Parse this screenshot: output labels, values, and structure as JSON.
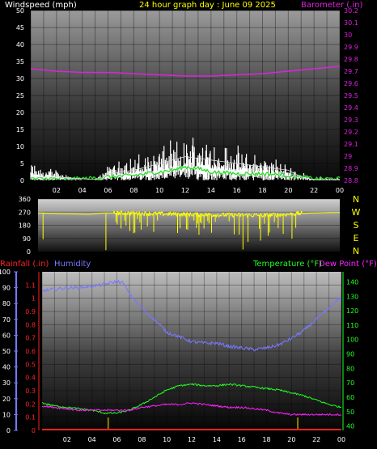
{
  "header": {
    "windspeed_label": "Windspeed (mph)",
    "title": "24 hour graph day : June 09 2025",
    "barometer_label": "Barometer (.in)"
  },
  "labels": {
    "rainfall": "Rainfall (.in)",
    "humidity": "Humidity",
    "temperature": "Temperature (°F)",
    "dewpoint": "Dew Point (°F)"
  },
  "colors": {
    "wind": "#ffffff",
    "gust_green": "#22dd22",
    "barometer": "#dd22dd",
    "direction": "#ffff00",
    "humidity": "#7777ff",
    "rain": "#ff2222",
    "temperature": "#22ff22",
    "dewpoint": "#ff22ff",
    "axis_text": "#ffffff",
    "title_text": "#ffff00"
  },
  "chart_data": [
    {
      "type": "line",
      "name": "wind-barometer",
      "xticks": [
        "02",
        "04",
        "06",
        "08",
        "10",
        "12",
        "14",
        "16",
        "18",
        "20",
        "22",
        "00"
      ],
      "ylim_left": [
        0,
        50
      ],
      "yticks_left": [
        "0",
        "5",
        "10",
        "15",
        "20",
        "25",
        "30",
        "35",
        "40",
        "45",
        "50"
      ],
      "ylim_right": [
        28.8,
        30.2
      ],
      "yticks_right": [
        "28.8",
        "28.9",
        "29",
        "29.1",
        "29.2",
        "29.3",
        "29.4",
        "29.5",
        "29.6",
        "29.7",
        "29.8",
        "29.9",
        "30",
        "30.1",
        "30.2"
      ],
      "series": [
        {
          "key": "barometer",
          "x": [
            0,
            2,
            4,
            6,
            8,
            10,
            12,
            14,
            16,
            18,
            20,
            22,
            24
          ],
          "values": [
            29.72,
            29.7,
            29.69,
            29.69,
            29.68,
            29.67,
            29.66,
            29.66,
            29.67,
            29.68,
            29.7,
            29.72,
            29.74
          ]
        },
        {
          "key": "wind_avg",
          "x": [
            0,
            2,
            4,
            5.5,
            6,
            8,
            10,
            12,
            14,
            16,
            18,
            20,
            21,
            22,
            23,
            24
          ],
          "values": [
            1,
            1,
            0.5,
            0,
            2,
            3,
            5,
            7,
            6,
            5,
            4,
            3,
            1,
            0,
            0,
            0
          ]
        },
        {
          "key": "wind_gust_hourly_max",
          "x": [
            0,
            1,
            2,
            3,
            4,
            5,
            6,
            7,
            8,
            9,
            10,
            11,
            12,
            13,
            14,
            15,
            16,
            17,
            18,
            19,
            20,
            21,
            22,
            23
          ],
          "values": [
            6,
            4,
            4,
            2,
            0,
            0,
            5,
            7,
            8,
            9,
            12,
            13,
            14,
            16,
            14,
            12,
            11,
            9,
            9,
            7,
            5,
            3,
            1,
            1
          ]
        },
        {
          "key": "wind_low",
          "x": [
            0,
            4,
            6,
            8,
            10,
            11,
            12,
            13,
            14,
            16,
            18,
            20,
            22,
            24
          ],
          "values": [
            0.5,
            0.5,
            1,
            1.5,
            2.5,
            3,
            4,
            3.5,
            2.5,
            2,
            2,
            1.5,
            0.5,
            0.5
          ]
        }
      ]
    },
    {
      "type": "line",
      "name": "wind-direction",
      "xticks": [
        "02",
        "04",
        "06",
        "08",
        "10",
        "12",
        "14",
        "16",
        "18",
        "20",
        "22",
        "00"
      ],
      "ylim": [
        0,
        360
      ],
      "yticks": [
        "0",
        "90",
        "180",
        "270",
        "360"
      ],
      "compass": [
        "N",
        "W",
        "S",
        "E",
        "N"
      ],
      "series": [
        {
          "key": "direction",
          "x": [
            0,
            1,
            2,
            3,
            4,
            5.3,
            6,
            8,
            10,
            12,
            14,
            16,
            18,
            20,
            21,
            22,
            24
          ],
          "values": [
            265,
            262,
            260,
            258,
            255,
            265,
            265,
            262,
            258,
            255,
            252,
            250,
            248,
            256,
            262,
            265,
            268
          ]
        }
      ]
    },
    {
      "type": "line",
      "name": "temp-hum-rain",
      "xticks": [
        "02",
        "04",
        "06",
        "08",
        "10",
        "12",
        "14",
        "16",
        "18",
        "20",
        "22",
        "00"
      ],
      "ylim_humidity": [
        0,
        100
      ],
      "yticks_humidity": [
        "0",
        "10",
        "20",
        "30",
        "40",
        "50",
        "60",
        "70",
        "80",
        "90",
        "100"
      ],
      "ylim_rain": [
        0,
        1.2
      ],
      "yticks_rain": [
        "0",
        "0.1",
        "0.2",
        "0.3",
        "0.4",
        "0.5",
        "0.6",
        "0.7",
        "0.8",
        "0.9",
        "1",
        "1.1"
      ],
      "ylim_temp": [
        37,
        147
      ],
      "yticks_temp": [
        "40",
        "50",
        "60",
        "70",
        "80",
        "90",
        "100",
        "110",
        "120",
        "130",
        "140"
      ],
      "series": [
        {
          "key": "humidity",
          "x": [
            0,
            1,
            2,
            3,
            4,
            5,
            6,
            6.5,
            7,
            8,
            9,
            10,
            11,
            12,
            13,
            14,
            15,
            16,
            17,
            18,
            19,
            20,
            21,
            22,
            23,
            24
          ],
          "values": [
            88,
            89,
            90,
            90,
            91,
            92,
            94,
            93,
            86,
            77,
            70,
            62,
            59,
            56,
            55,
            55,
            53,
            52,
            51,
            52,
            54,
            58,
            63,
            70,
            77,
            84
          ]
        },
        {
          "key": "temperature",
          "x": [
            0,
            1,
            2,
            3,
            4,
            5,
            6,
            7,
            8,
            9,
            10,
            11,
            12,
            13,
            14,
            15,
            16,
            17,
            18,
            19,
            20,
            21,
            22,
            23,
            24
          ],
          "values": [
            56,
            54,
            53,
            52,
            51,
            49,
            49,
            51,
            55,
            60,
            65,
            68,
            69,
            68,
            68,
            69,
            68,
            67,
            66,
            65,
            63,
            61,
            58,
            55,
            53
          ]
        },
        {
          "key": "dewpoint",
          "x": [
            0,
            1,
            2,
            3,
            4,
            5,
            6,
            7,
            8,
            9,
            10,
            11,
            12,
            13,
            14,
            15,
            16,
            17,
            18,
            19,
            20,
            21,
            22,
            23,
            24
          ],
          "values": [
            54,
            53,
            52,
            51,
            51,
            51,
            51,
            51,
            53,
            54,
            55,
            55,
            56,
            55,
            54,
            53,
            53,
            52,
            51,
            49,
            48,
            48,
            48,
            48,
            48
          ]
        },
        {
          "key": "rain_total",
          "x": [
            0,
            24
          ],
          "values": [
            0.0,
            0.0
          ]
        }
      ],
      "rain_ticks_x": [
        5.3,
        20.5
      ]
    }
  ]
}
